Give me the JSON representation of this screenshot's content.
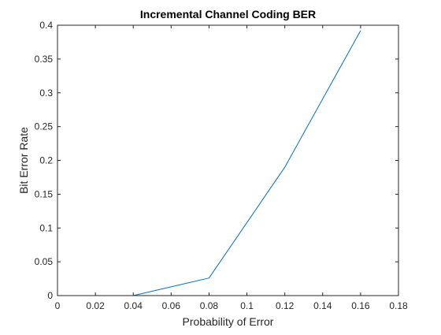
{
  "chart_data": {
    "type": "line",
    "title": "Incremental Channel Coding BER",
    "xlabel": "Probability of Error",
    "ylabel": "Bit Error Rate",
    "xlim": [
      0,
      0.18
    ],
    "ylim": [
      0,
      0.4
    ],
    "xticks": [
      0,
      0.02,
      0.04,
      0.06,
      0.08,
      0.1,
      0.12,
      0.14,
      0.16,
      0.18
    ],
    "xtick_labels": [
      "0",
      "0.02",
      "0.04",
      "0.06",
      "0.08",
      "0.1",
      "0.12",
      "0.14",
      "0.16",
      "0.18"
    ],
    "yticks": [
      0,
      0.05,
      0.1,
      0.15,
      0.2,
      0.25,
      0.3,
      0.35,
      0.4
    ],
    "ytick_labels": [
      "0",
      "0.05",
      "0.1",
      "0.15",
      "0.2",
      "0.25",
      "0.3",
      "0.35",
      "0.4"
    ],
    "grid": false,
    "series": [
      {
        "color": "#0072BD",
        "x": [
          0,
          0.04,
          0.08,
          0.12,
          0.16
        ],
        "y": [
          0,
          0,
          0.026,
          0.19,
          0.392
        ]
      }
    ]
  }
}
